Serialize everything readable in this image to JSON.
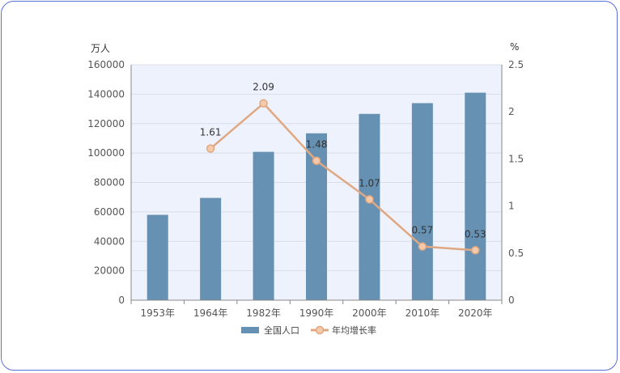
{
  "chart_data": {
    "type": "bar+line",
    "categories": [
      "1953年",
      "1964年",
      "1982年",
      "1990年",
      "2000年",
      "2010年",
      "2020年"
    ],
    "series": [
      {
        "name": "全国人口",
        "type": "bar",
        "axis": "left",
        "values": [
          58000,
          69500,
          100800,
          113400,
          126600,
          133900,
          141000
        ],
        "color": "#6691b3"
      },
      {
        "name": "年均增长率",
        "type": "line",
        "axis": "right",
        "values": [
          null,
          1.61,
          2.09,
          1.48,
          1.07,
          0.57,
          0.53
        ],
        "data_labels": [
          "",
          "1.61",
          "2.09",
          "1.48",
          "1.07",
          "0.57",
          "0.53"
        ],
        "color": "#e0a882"
      }
    ],
    "left_axis": {
      "unit": "万人",
      "range": [
        0,
        160000
      ],
      "ticks": [
        "0",
        "20000",
        "40000",
        "60000",
        "80000",
        "100000",
        "120000",
        "140000",
        "160000"
      ]
    },
    "right_axis": {
      "unit": "%",
      "range": [
        0,
        2.5
      ],
      "ticks": [
        "0",
        "0.5",
        "1",
        "1.5",
        "2",
        "2.5"
      ]
    },
    "grid": true,
    "legend_position": "bottom",
    "plot_background": "#eef2fd"
  }
}
